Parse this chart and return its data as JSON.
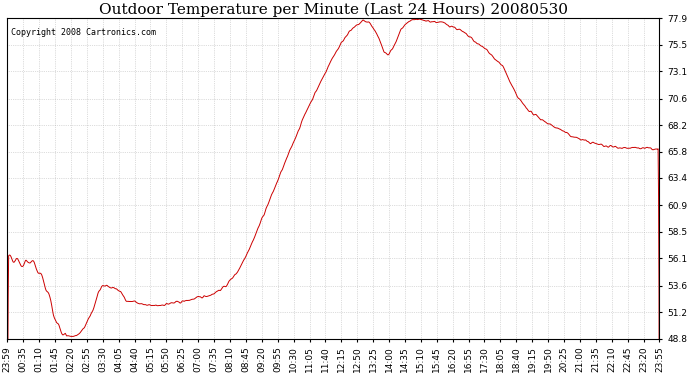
{
  "title": "Outdoor Temperature per Minute (Last 24 Hours) 20080530",
  "copyright": "Copyright 2008 Cartronics.com",
  "line_color": "#cc0000",
  "background_color": "#ffffff",
  "grid_color": "#aaaaaa",
  "yticks": [
    48.8,
    51.2,
    53.6,
    56.1,
    58.5,
    60.9,
    63.4,
    65.8,
    68.2,
    70.6,
    73.1,
    75.5,
    77.9
  ],
  "ylim": [
    48.8,
    77.9
  ],
  "xtick_labels": [
    "23:59",
    "00:35",
    "01:10",
    "01:45",
    "02:20",
    "02:55",
    "03:30",
    "04:05",
    "04:40",
    "05:15",
    "05:50",
    "06:25",
    "07:00",
    "07:35",
    "08:10",
    "08:45",
    "09:20",
    "09:55",
    "10:30",
    "11:05",
    "11:40",
    "12:15",
    "12:50",
    "13:25",
    "14:00",
    "14:35",
    "15:10",
    "15:45",
    "16:20",
    "16:55",
    "17:30",
    "18:05",
    "18:40",
    "19:15",
    "19:50",
    "20:25",
    "21:00",
    "21:35",
    "22:10",
    "22:45",
    "23:20",
    "23:55"
  ],
  "title_fontsize": 11,
  "tick_fontsize": 6.5,
  "copyright_fontsize": 6
}
